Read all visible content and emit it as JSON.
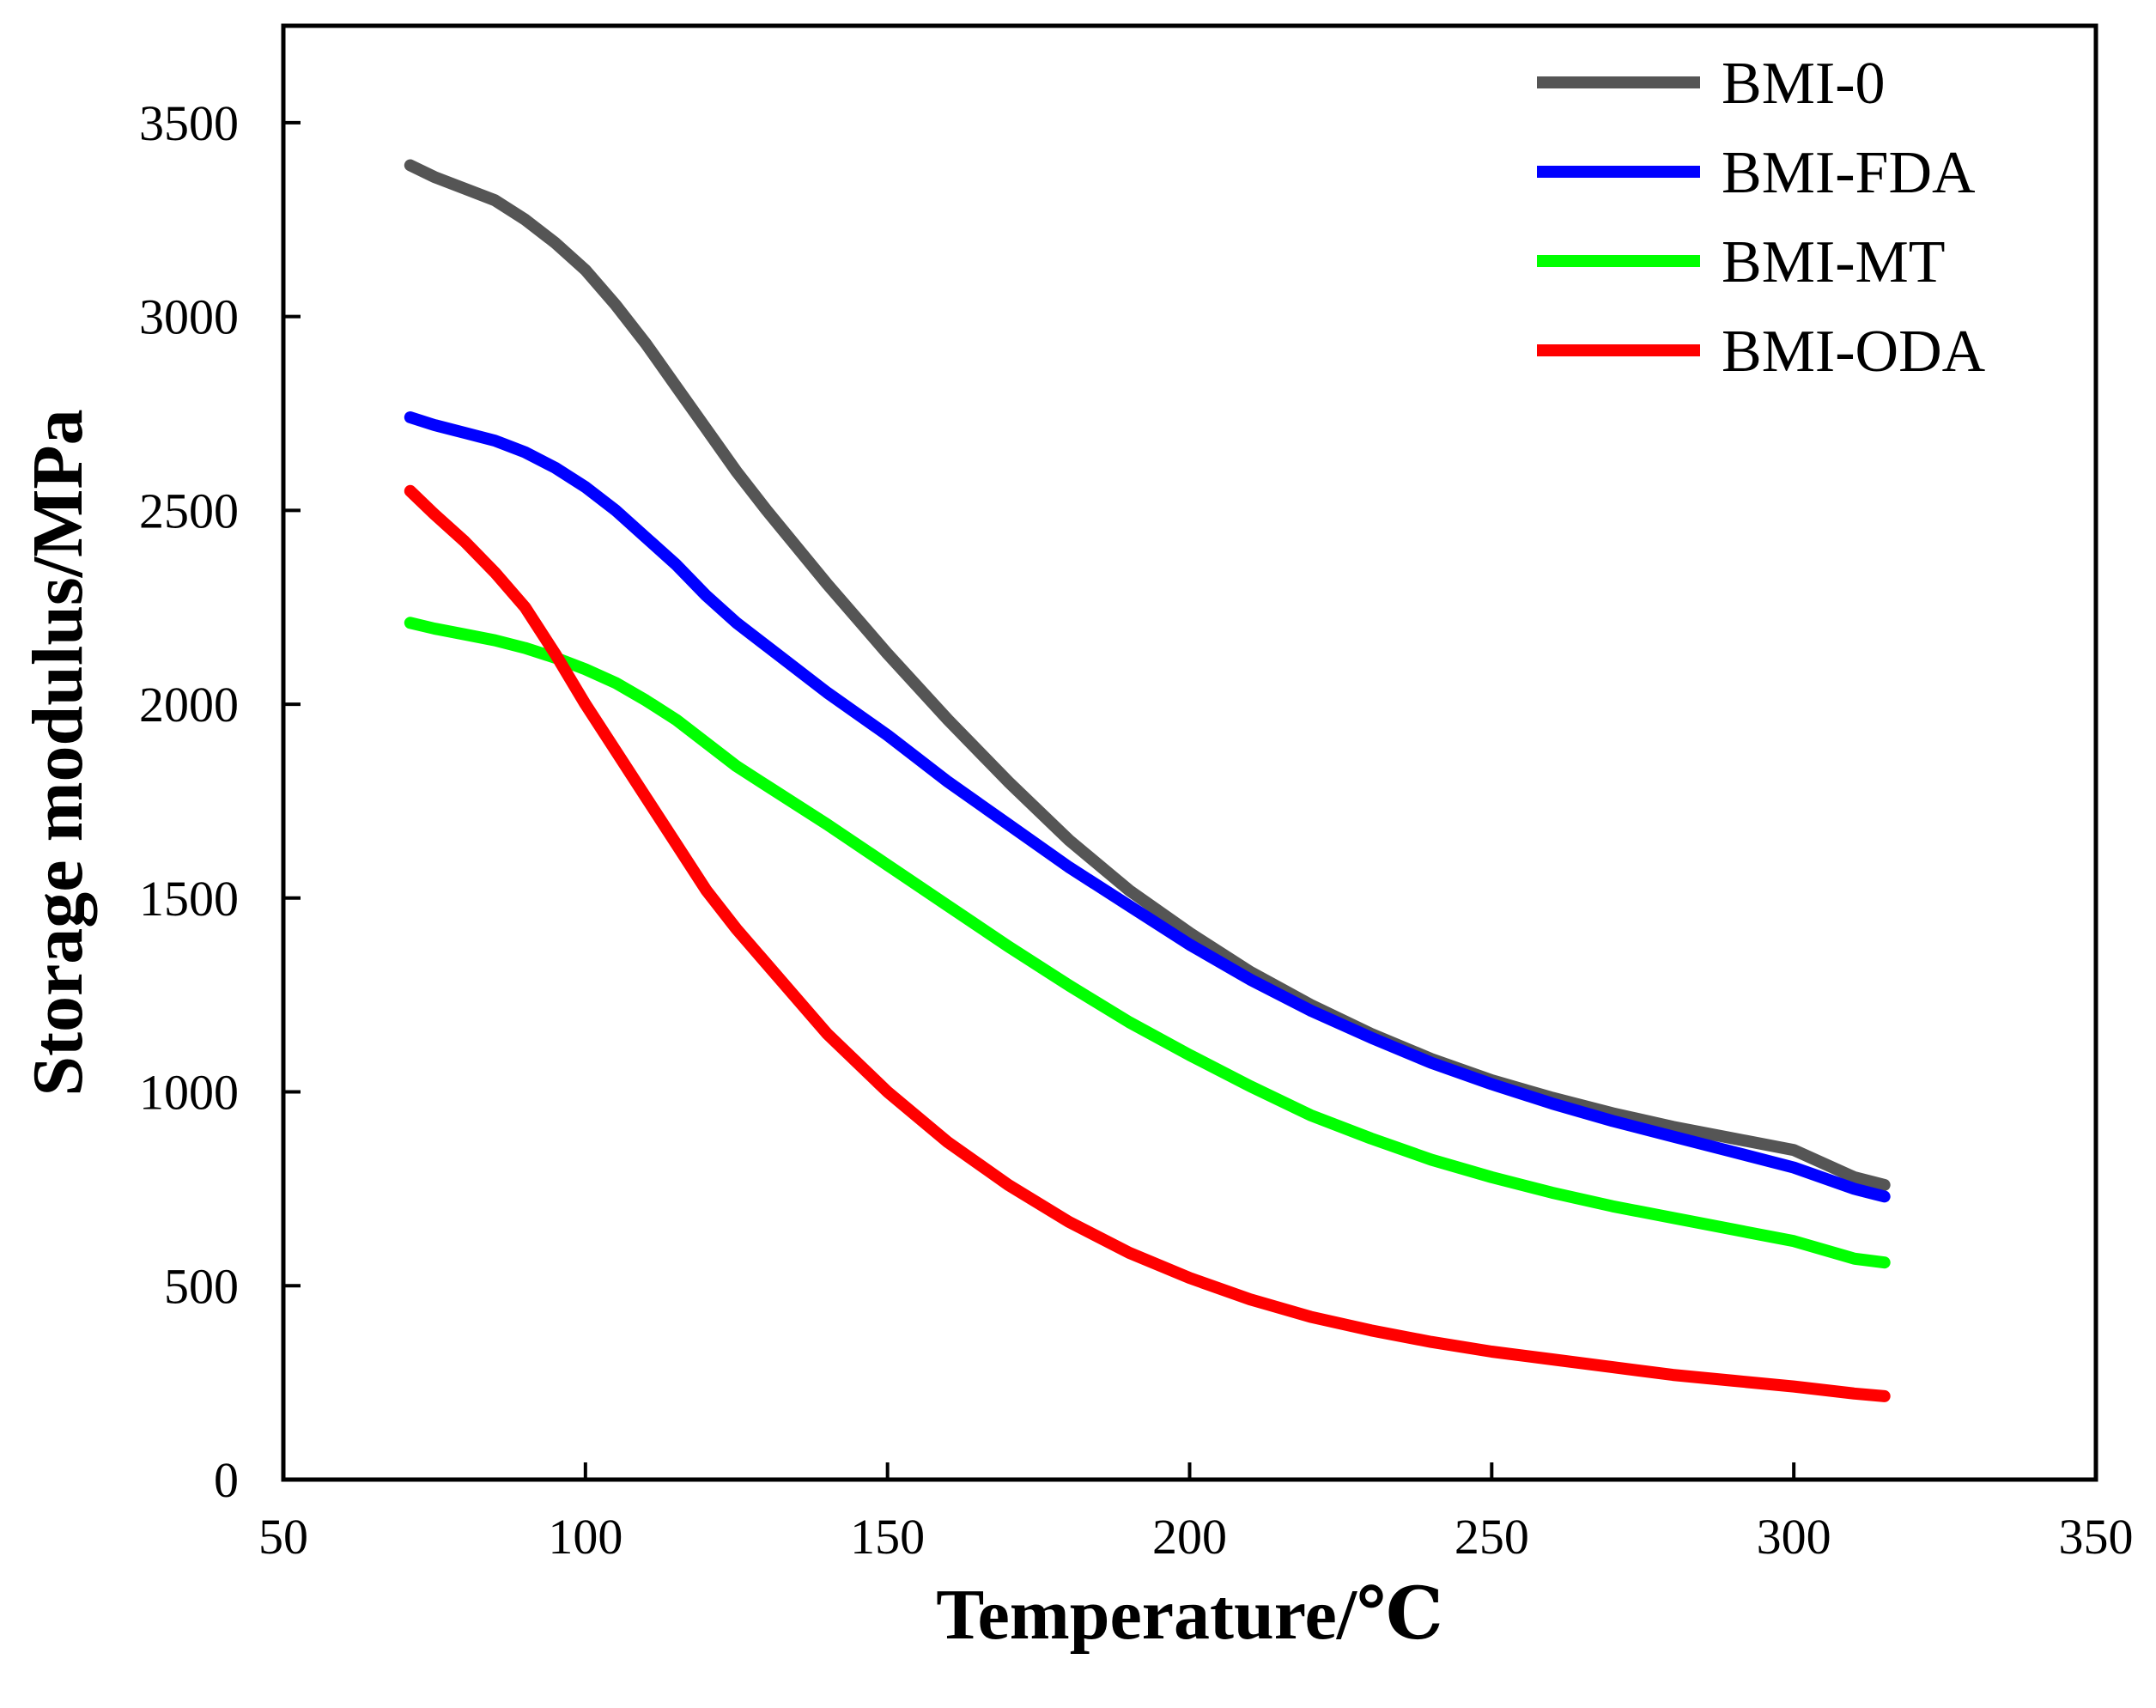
{
  "chart_data": {
    "type": "line",
    "title": "",
    "xlabel": "Temperature/℃",
    "ylabel": "Storage modulus/MPa",
    "xlim": [
      50,
      350
    ],
    "ylim": [
      0,
      3750
    ],
    "xticks": [
      50,
      100,
      150,
      200,
      250,
      300,
      350
    ],
    "yticks": [
      0,
      500,
      1000,
      1500,
      2000,
      2500,
      3000,
      3500
    ],
    "ytick_labels": [
      "0",
      "500",
      "1000",
      "1500",
      "2000",
      "2500",
      "3000",
      "3500"
    ],
    "legend_position": "top-right",
    "grid": false,
    "series": [
      {
        "name": "BMI-0",
        "color": "#555555",
        "x": [
          71,
          75,
          80,
          85,
          90,
          95,
          100,
          105,
          110,
          115,
          120,
          125,
          130,
          140,
          150,
          160,
          170,
          180,
          190,
          200,
          210,
          220,
          230,
          240,
          250,
          260,
          270,
          280,
          290,
          300,
          310,
          315
        ],
        "y": [
          3390,
          3360,
          3330,
          3300,
          3250,
          3190,
          3120,
          3030,
          2930,
          2820,
          2710,
          2600,
          2500,
          2310,
          2130,
          1960,
          1800,
          1650,
          1520,
          1410,
          1310,
          1225,
          1150,
          1085,
          1030,
          985,
          945,
          910,
          880,
          850,
          780,
          760
        ]
      },
      {
        "name": "BMI-FDA",
        "color": "#0000FF",
        "x": [
          71,
          75,
          80,
          85,
          90,
          95,
          100,
          105,
          110,
          115,
          120,
          125,
          130,
          140,
          150,
          160,
          170,
          180,
          190,
          200,
          210,
          220,
          230,
          240,
          250,
          260,
          270,
          280,
          290,
          300,
          310,
          315
        ],
        "y": [
          2740,
          2720,
          2700,
          2680,
          2650,
          2610,
          2560,
          2500,
          2430,
          2360,
          2280,
          2210,
          2150,
          2030,
          1920,
          1800,
          1690,
          1580,
          1480,
          1380,
          1290,
          1210,
          1140,
          1075,
          1020,
          970,
          925,
          885,
          845,
          805,
          750,
          730
        ]
      },
      {
        "name": "BMI-MT",
        "color": "#00FF00",
        "x": [
          71,
          75,
          80,
          85,
          90,
          95,
          100,
          105,
          110,
          115,
          120,
          125,
          130,
          140,
          150,
          160,
          170,
          180,
          190,
          200,
          210,
          220,
          230,
          240,
          250,
          260,
          270,
          280,
          290,
          300,
          310,
          315
        ],
        "y": [
          2210,
          2195,
          2180,
          2165,
          2145,
          2120,
          2090,
          2055,
          2010,
          1960,
          1900,
          1840,
          1790,
          1690,
          1585,
          1480,
          1375,
          1275,
          1180,
          1095,
          1015,
          940,
          880,
          825,
          780,
          740,
          705,
          675,
          645,
          615,
          570,
          560
        ]
      },
      {
        "name": "BMI-ODA",
        "color": "#FF0000",
        "x": [
          71,
          75,
          80,
          85,
          90,
          95,
          100,
          105,
          110,
          115,
          120,
          125,
          130,
          140,
          150,
          160,
          170,
          180,
          190,
          200,
          210,
          220,
          230,
          240,
          250,
          260,
          270,
          280,
          290,
          300,
          310,
          315
        ],
        "y": [
          2550,
          2490,
          2420,
          2340,
          2250,
          2130,
          2000,
          1880,
          1760,
          1640,
          1520,
          1420,
          1330,
          1150,
          1000,
          870,
          760,
          665,
          585,
          520,
          465,
          420,
          385,
          355,
          330,
          310,
          290,
          270,
          255,
          240,
          222,
          215
        ]
      }
    ]
  }
}
